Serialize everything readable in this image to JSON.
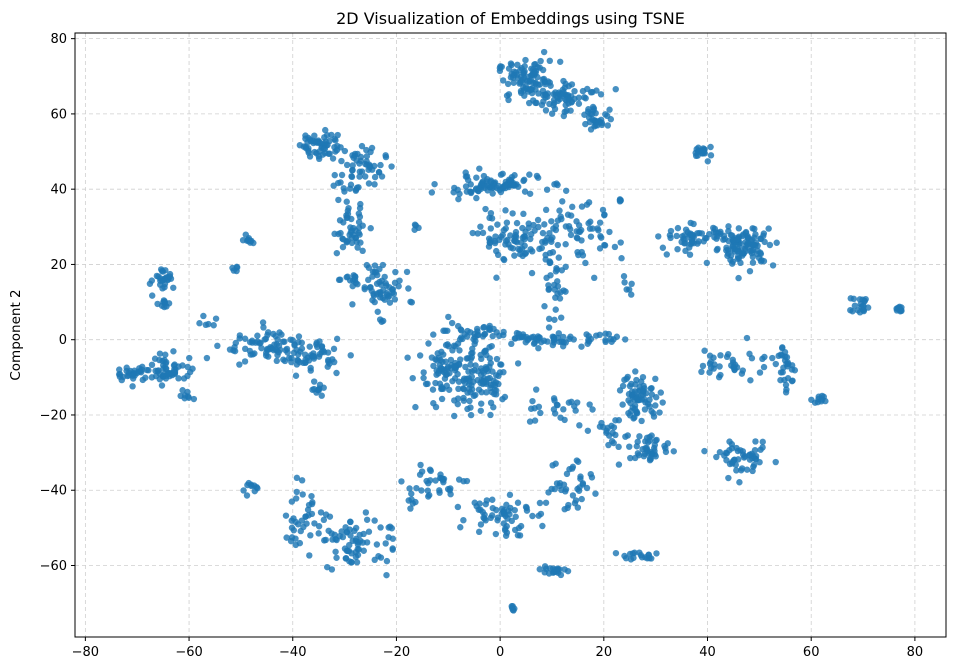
{
  "chart_data": {
    "type": "scatter",
    "title": "2D Visualization of Embeddings using TSNE",
    "xlabel": "",
    "ylabel": "Component 2",
    "xlim": [
      -82,
      86
    ],
    "ylim": [
      -79,
      81.5
    ],
    "xticks": [
      -80,
      -60,
      -40,
      -20,
      0,
      20,
      40,
      60,
      80
    ],
    "yticks": [
      -60,
      -40,
      -20,
      0,
      20,
      40,
      60,
      80
    ],
    "grid": true,
    "point_color": "#1f77b4",
    "clusters": [
      {
        "cx": 5.5,
        "cy": 69,
        "sx": 3,
        "sy": 2.5,
        "n": 90
      },
      {
        "cx": 13,
        "cy": 64,
        "sx": 3.5,
        "sy": 2.2,
        "n": 70
      },
      {
        "cx": 19,
        "cy": 58.5,
        "sx": 1.5,
        "sy": 1.3,
        "n": 25
      },
      {
        "cx": -35,
        "cy": 52,
        "sx": 1.8,
        "sy": 2,
        "n": 55
      },
      {
        "cx": -27,
        "cy": 45,
        "sx": 2.5,
        "sy": 3.5,
        "n": 60
      },
      {
        "cx": -29,
        "cy": 29,
        "sx": 1.8,
        "sy": 3,
        "n": 45
      },
      {
        "cx": -23,
        "cy": 14,
        "sx": 2.2,
        "sy": 3.5,
        "n": 60
      },
      {
        "cx": -29,
        "cy": 16,
        "sx": 1.5,
        "sy": 0.8,
        "n": 12
      },
      {
        "cx": -2,
        "cy": 41,
        "sx": 5,
        "sy": 1.5,
        "n": 90
      },
      {
        "cx": 4,
        "cy": 27,
        "sx": 4,
        "sy": 3.5,
        "n": 90
      },
      {
        "cx": 15,
        "cy": 27,
        "sx": 4,
        "sy": 4.5,
        "n": 60
      },
      {
        "cx": 10,
        "cy": 14,
        "sx": 1.3,
        "sy": 4.5,
        "n": 30
      },
      {
        "cx": 39,
        "cy": 50,
        "sx": 1,
        "sy": 1,
        "n": 18
      },
      {
        "cx": 37,
        "cy": 27,
        "sx": 3,
        "sy": 1.8,
        "n": 50
      },
      {
        "cx": 47,
        "cy": 25,
        "sx": 3,
        "sy": 2.6,
        "n": 110
      },
      {
        "cx": 25,
        "cy": 15,
        "sx": 0.8,
        "sy": 1.5,
        "n": 6
      },
      {
        "cx": -65,
        "cy": 16.5,
        "sx": 1,
        "sy": 1.5,
        "n": 25
      },
      {
        "cx": -65,
        "cy": 10,
        "sx": 1,
        "sy": 0.8,
        "n": 10
      },
      {
        "cx": -48.5,
        "cy": 26.5,
        "sx": 0.5,
        "sy": 0.5,
        "n": 10
      },
      {
        "cx": -51,
        "cy": 19,
        "sx": 0.4,
        "sy": 0.4,
        "n": 5
      },
      {
        "cx": -71,
        "cy": -9,
        "sx": 1.5,
        "sy": 1,
        "n": 25
      },
      {
        "cx": -64,
        "cy": -8,
        "sx": 3,
        "sy": 1.8,
        "n": 60
      },
      {
        "cx": -60,
        "cy": -15,
        "sx": 0.6,
        "sy": 1,
        "n": 8
      },
      {
        "cx": -57,
        "cy": 5,
        "sx": 1.2,
        "sy": 1,
        "n": 6
      },
      {
        "cx": -45,
        "cy": -2,
        "sx": 4,
        "sy": 2.5,
        "n": 60
      },
      {
        "cx": -37,
        "cy": -4,
        "sx": 3,
        "sy": 2,
        "n": 60
      },
      {
        "cx": -35,
        "cy": -13,
        "sx": 0.8,
        "sy": 1,
        "n": 10
      },
      {
        "cx": -9,
        "cy": -8,
        "sx": 3.5,
        "sy": 5,
        "n": 120
      },
      {
        "cx": -3,
        "cy": -12,
        "sx": 3,
        "sy": 4,
        "n": 70
      },
      {
        "cx": -4,
        "cy": 2,
        "sx": 3,
        "sy": 1.3,
        "n": 25
      },
      {
        "cx": 8,
        "cy": 0,
        "sx": 4.5,
        "sy": 1,
        "n": 50
      },
      {
        "cx": 19,
        "cy": 0,
        "sx": 2,
        "sy": 1,
        "n": 15
      },
      {
        "cx": 10,
        "cy": -18,
        "sx": 4,
        "sy": 2,
        "n": 25
      },
      {
        "cx": 22,
        "cy": -25,
        "sx": 3,
        "sy": 1.5,
        "n": 20
      },
      {
        "cx": 27,
        "cy": -15,
        "sx": 2,
        "sy": 3,
        "n": 70
      },
      {
        "cx": 29,
        "cy": -29,
        "sx": 2,
        "sy": 2,
        "n": 40
      },
      {
        "cx": 46,
        "cy": -6,
        "sx": 4,
        "sy": 2.5,
        "n": 40
      },
      {
        "cx": 55,
        "cy": -7,
        "sx": 1,
        "sy": 3.5,
        "n": 25
      },
      {
        "cx": 62,
        "cy": -16,
        "sx": 1,
        "sy": 0.5,
        "n": 10
      },
      {
        "cx": 47,
        "cy": -32,
        "sx": 2.5,
        "sy": 2,
        "n": 50
      },
      {
        "cx": 69.5,
        "cy": 9,
        "sx": 1,
        "sy": 1.2,
        "n": 20
      },
      {
        "cx": 77,
        "cy": 8,
        "sx": 0.8,
        "sy": 0.5,
        "n": 10
      },
      {
        "cx": -48,
        "cy": -39,
        "sx": 1,
        "sy": 1,
        "n": 10
      },
      {
        "cx": -38,
        "cy": -47,
        "sx": 2.5,
        "sy": 4,
        "n": 40
      },
      {
        "cx": -29,
        "cy": -54,
        "sx": 2.5,
        "sy": 3.5,
        "n": 60
      },
      {
        "cx": -22,
        "cy": -54,
        "sx": 1.2,
        "sy": 3,
        "n": 12
      },
      {
        "cx": -12,
        "cy": -38,
        "sx": 3,
        "sy": 2,
        "n": 30
      },
      {
        "cx": -17,
        "cy": -42,
        "sx": 1.5,
        "sy": 2,
        "n": 8
      },
      {
        "cx": 0,
        "cy": -46,
        "sx": 3,
        "sy": 3,
        "n": 60
      },
      {
        "cx": 13,
        "cy": -38,
        "sx": 3,
        "sy": 4,
        "n": 40
      },
      {
        "cx": 10,
        "cy": -61.5,
        "sx": 1.2,
        "sy": 0.8,
        "n": 20
      },
      {
        "cx": 26,
        "cy": -57.5,
        "sx": 2.5,
        "sy": 0.8,
        "n": 18
      },
      {
        "cx": 2.5,
        "cy": -71.5,
        "sx": 0.4,
        "sy": 0.3,
        "n": 6
      },
      {
        "cx": 23,
        "cy": 37,
        "sx": 0.3,
        "sy": 0.3,
        "n": 4
      },
      {
        "cx": -16,
        "cy": 30,
        "sx": 0.6,
        "sy": 0.5,
        "n": 4
      }
    ]
  }
}
